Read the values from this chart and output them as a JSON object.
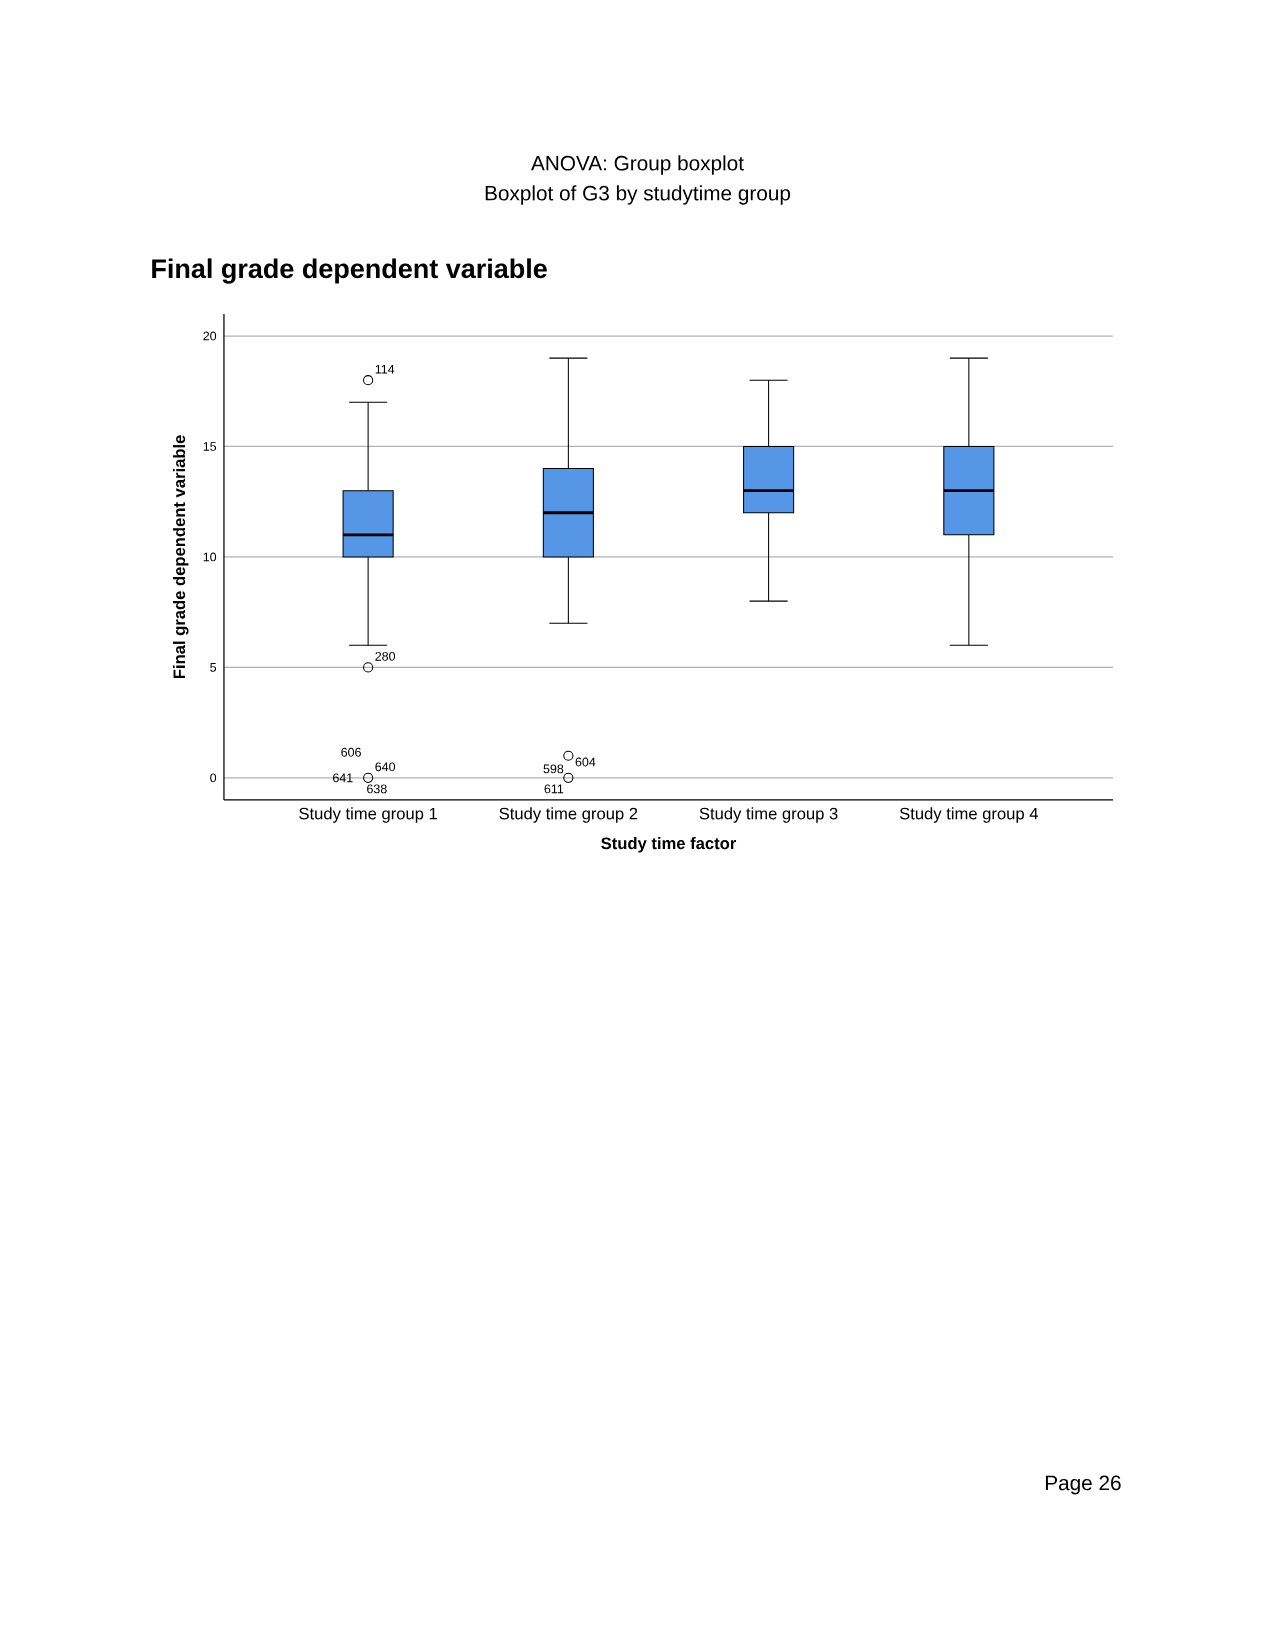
{
  "chart_data": {
    "type": "box",
    "title": "ANOVA: Group boxplot",
    "subtitle": "Boxplot of G3 by studytime group",
    "xlabel": "Study time factor",
    "ylabel": "Final grade dependent variable",
    "categories": [
      "Study time group 1",
      "Study time group 2",
      "Study time group 3",
      "Study time group 4"
    ],
    "boxes": [
      {
        "low": 6,
        "q1": 10,
        "median": 11,
        "q3": 13,
        "high": 17,
        "outliers": [
          18,
          5,
          0
        ]
      },
      {
        "low": 7,
        "q1": 10,
        "median": 12,
        "q3": 14,
        "high": 19,
        "outliers": [
          1,
          0
        ]
      },
      {
        "low": 8,
        "q1": 12,
        "median": 13,
        "q3": 15,
        "high": 18
      },
      {
        "low": 6,
        "q1": 11,
        "median": 13,
        "q3": 15,
        "high": 19
      }
    ],
    "color": "#5596e6",
    "ylim": [
      -1,
      21
    ],
    "yticks": [
      0,
      5,
      10,
      15,
      20
    ],
    "grid": "y",
    "annotations": [
      "Final grade dependent variable",
      "114",
      "280",
      "606",
      "640",
      "641",
      "638",
      "604",
      "598",
      "611",
      "Page 26"
    ]
  }
}
